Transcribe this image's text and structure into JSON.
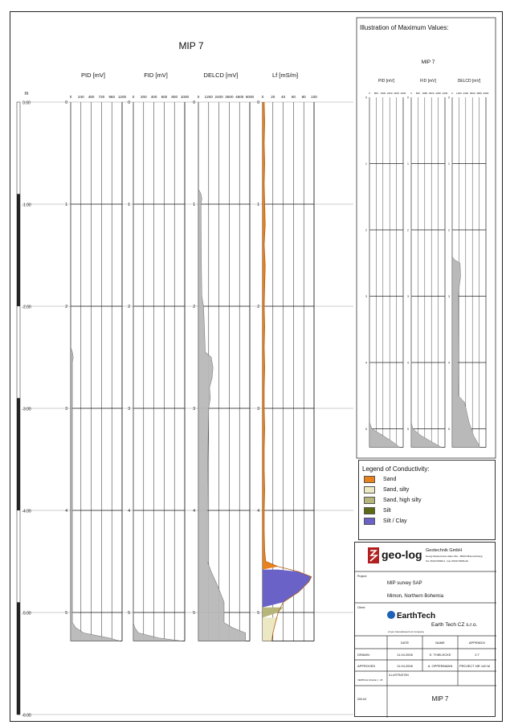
{
  "chart_data": {
    "type": "line",
    "title": "MIP 7",
    "depth_axis": {
      "unit": "m",
      "ticks": [
        "0.00",
        "-1.00",
        "-2.00",
        "-3.00",
        "-4.00",
        "-5.00",
        "-6.00"
      ],
      "range": [
        0,
        6
      ]
    },
    "tracks": [
      {
        "name": "PID [mV]",
        "ticks": [
          "0",
          "240",
          "480",
          "720",
          "960",
          "1200"
        ],
        "xlim": [
          0,
          1200
        ],
        "color": "#b9b9b9",
        "depth_labels": [
          "0",
          "1",
          "2",
          "3",
          "4",
          "5"
        ],
        "depth": [
          0,
          2.4,
          2.45,
          2.5,
          2.55,
          5.1,
          5.15,
          5.2,
          5.25,
          5.28
        ],
        "values": [
          0,
          0,
          40,
          60,
          40,
          40,
          120,
          300,
          900,
          1150
        ]
      },
      {
        "name": "FID [mV]",
        "ticks": [
          "0",
          "200",
          "400",
          "600",
          "800",
          "1000"
        ],
        "xlim": [
          0,
          1000
        ],
        "color": "#b9b9b9",
        "depth_labels": [
          "0",
          "1",
          "2",
          "3",
          "4",
          "5"
        ],
        "depth": [
          0,
          5.1,
          5.15,
          5.2,
          5.25,
          5.28
        ],
        "values": [
          0,
          0,
          30,
          100,
          500,
          950
        ]
      },
      {
        "name": "DELCD [mV]",
        "ticks": [
          "0",
          "1200",
          "2400",
          "3600",
          "4800",
          "6000"
        ],
        "xlim": [
          0,
          6000
        ],
        "color": "#b9b9b9",
        "depth_labels": [
          "0",
          "1",
          "2",
          "3",
          "4",
          "5"
        ],
        "depth": [
          0,
          0.85,
          0.9,
          0.95,
          1.0,
          1.6,
          1.9,
          2.0,
          2.2,
          2.45,
          2.5,
          2.6,
          2.7,
          2.8,
          2.9,
          3.0,
          3.5,
          4.0,
          4.5,
          4.6,
          4.75,
          4.9,
          5.1,
          5.15,
          5.2,
          5.28
        ],
        "values": [
          0,
          0,
          300,
          400,
          300,
          350,
          400,
          600,
          700,
          800,
          1500,
          1700,
          1600,
          1300,
          1400,
          1200,
          1100,
          1050,
          1050,
          1500,
          2300,
          3000,
          3000,
          4000,
          5500,
          5500
        ]
      },
      {
        "name": "Lf [mS/m]",
        "ticks": [
          "0",
          "20",
          "40",
          "60",
          "80",
          "100"
        ],
        "xlim": [
          0,
          100
        ],
        "color": "#e8821e",
        "depth_labels": [
          "0",
          "1",
          "2",
          "3",
          "4",
          "5"
        ],
        "depth": [
          0,
          0.2,
          0.4,
          0.6,
          0.8,
          1.0,
          1.2,
          1.4,
          1.6,
          1.8,
          2.0,
          2.2,
          2.4,
          2.6,
          2.8,
          3.0,
          3.2,
          3.4,
          3.6,
          3.8,
          4.0,
          4.2,
          4.4,
          4.5,
          4.55,
          4.6,
          4.65,
          4.7,
          4.8,
          4.9,
          5.0,
          5.1,
          5.2,
          5.28
        ],
        "values": [
          3,
          4,
          3,
          4,
          3,
          4,
          5,
          3,
          5,
          4,
          3,
          4,
          3,
          4,
          3,
          3,
          4,
          3,
          3,
          4,
          3,
          3,
          4,
          6,
          30,
          70,
          95,
          90,
          70,
          40,
          30,
          25,
          20,
          18
        ]
      }
    ],
    "layers": [
      {
        "from": 0,
        "to": 4.58,
        "class": "Sand"
      },
      {
        "from": 4.58,
        "to": 4.95,
        "class": "Silt / Clay"
      },
      {
        "from": 4.95,
        "to": 5.05,
        "class": "Sand, high silty"
      },
      {
        "from": 5.05,
        "to": 5.28,
        "class": "Sand, silty"
      }
    ],
    "maximum_values": {
      "title": "Illustration of Maximum Values:",
      "chart_title": "MIP 7",
      "tracks": [
        {
          "name": "PID [mV]",
          "ticks": [
            "0",
            "800",
            "1600",
            "2400",
            "3200",
            "4000"
          ],
          "xlim": [
            0,
            4000
          ],
          "depth": [
            0,
            4.9,
            5.0,
            5.1,
            5.2,
            5.28
          ],
          "values": [
            0,
            0,
            300,
            1600,
            2800,
            3600
          ]
        },
        {
          "name": "FID [mV]",
          "ticks": [
            "0",
            "840",
            "1680",
            "2520",
            "3360",
            "4200"
          ],
          "xlim": [
            0,
            4200
          ],
          "depth": [
            0,
            4.9,
            5.0,
            5.1,
            5.2,
            5.28
          ],
          "values": [
            0,
            0,
            200,
            1200,
            2600,
            3800
          ]
        },
        {
          "name": "DELCD [mV]",
          "ticks": [
            "0",
            "1200",
            "2400",
            "3600",
            "4800",
            "6000"
          ],
          "xlim": [
            0,
            6000
          ],
          "depth": [
            0,
            2.4,
            2.45,
            2.5,
            2.7,
            2.9,
            3.0,
            4.0,
            4.5,
            4.6,
            4.9,
            5.1,
            5.28
          ],
          "values": [
            0,
            0,
            400,
            1400,
            1500,
            1200,
            1100,
            1050,
            1100,
            2200,
            3000,
            3800,
            5000
          ]
        }
      ],
      "depth_labels": [
        "0",
        "1",
        "2",
        "3",
        "4",
        "5"
      ]
    }
  },
  "legend": {
    "title": "Legend of Conductivity:",
    "items": [
      {
        "label": "Sand",
        "color": "#e8821e"
      },
      {
        "label": "Sand, silty",
        "color": "#ece8c4"
      },
      {
        "label": "Sand, high silty",
        "color": "#b6b67a"
      },
      {
        "label": "Silt",
        "color": "#5c6a16"
      },
      {
        "label": "Silt / Clay",
        "color": "#6a62c6"
      }
    ]
  },
  "titleblock": {
    "logo_text": "geo-log",
    "company": "Geotechnik GmbH",
    "address": "Georg-Westermann-Allee 23a - 38104 Braunschweig",
    "phone": "Tel. 0531/70096-0 - Fax 0531/70096-29",
    "project_label": "Project:",
    "project_line1": "MIP survey SAP",
    "project_line2": "Mimon, Northern Bohemia",
    "client_label": "Client:",
    "client_logo": "EarthTech",
    "client_sub": "A tyco International Ltd. Company",
    "client_name": "Earth Tech CZ s.r.o.",
    "hdr_date": "DATE",
    "hdr_name": "NAME",
    "hdr_appendix": "APPENDIX",
    "drawn_label": "DRAWN",
    "drawn_date": "11.04.2006",
    "drawn_name": "S. THIELECKE",
    "appendix_no": "2.7",
    "approved_label": "APPROVED",
    "approved_date": "11.04.2006",
    "approved_name": "A. OPPERMANN",
    "project_nr_label": "PROJECT NR.",
    "project_nr": "140 M",
    "scale_label": "VERTICAL SCALE 1 : 25",
    "illustration_label": "ILLUSTRATION",
    "din_label": "DIN A3",
    "illustration_title": "MIP 7"
  }
}
